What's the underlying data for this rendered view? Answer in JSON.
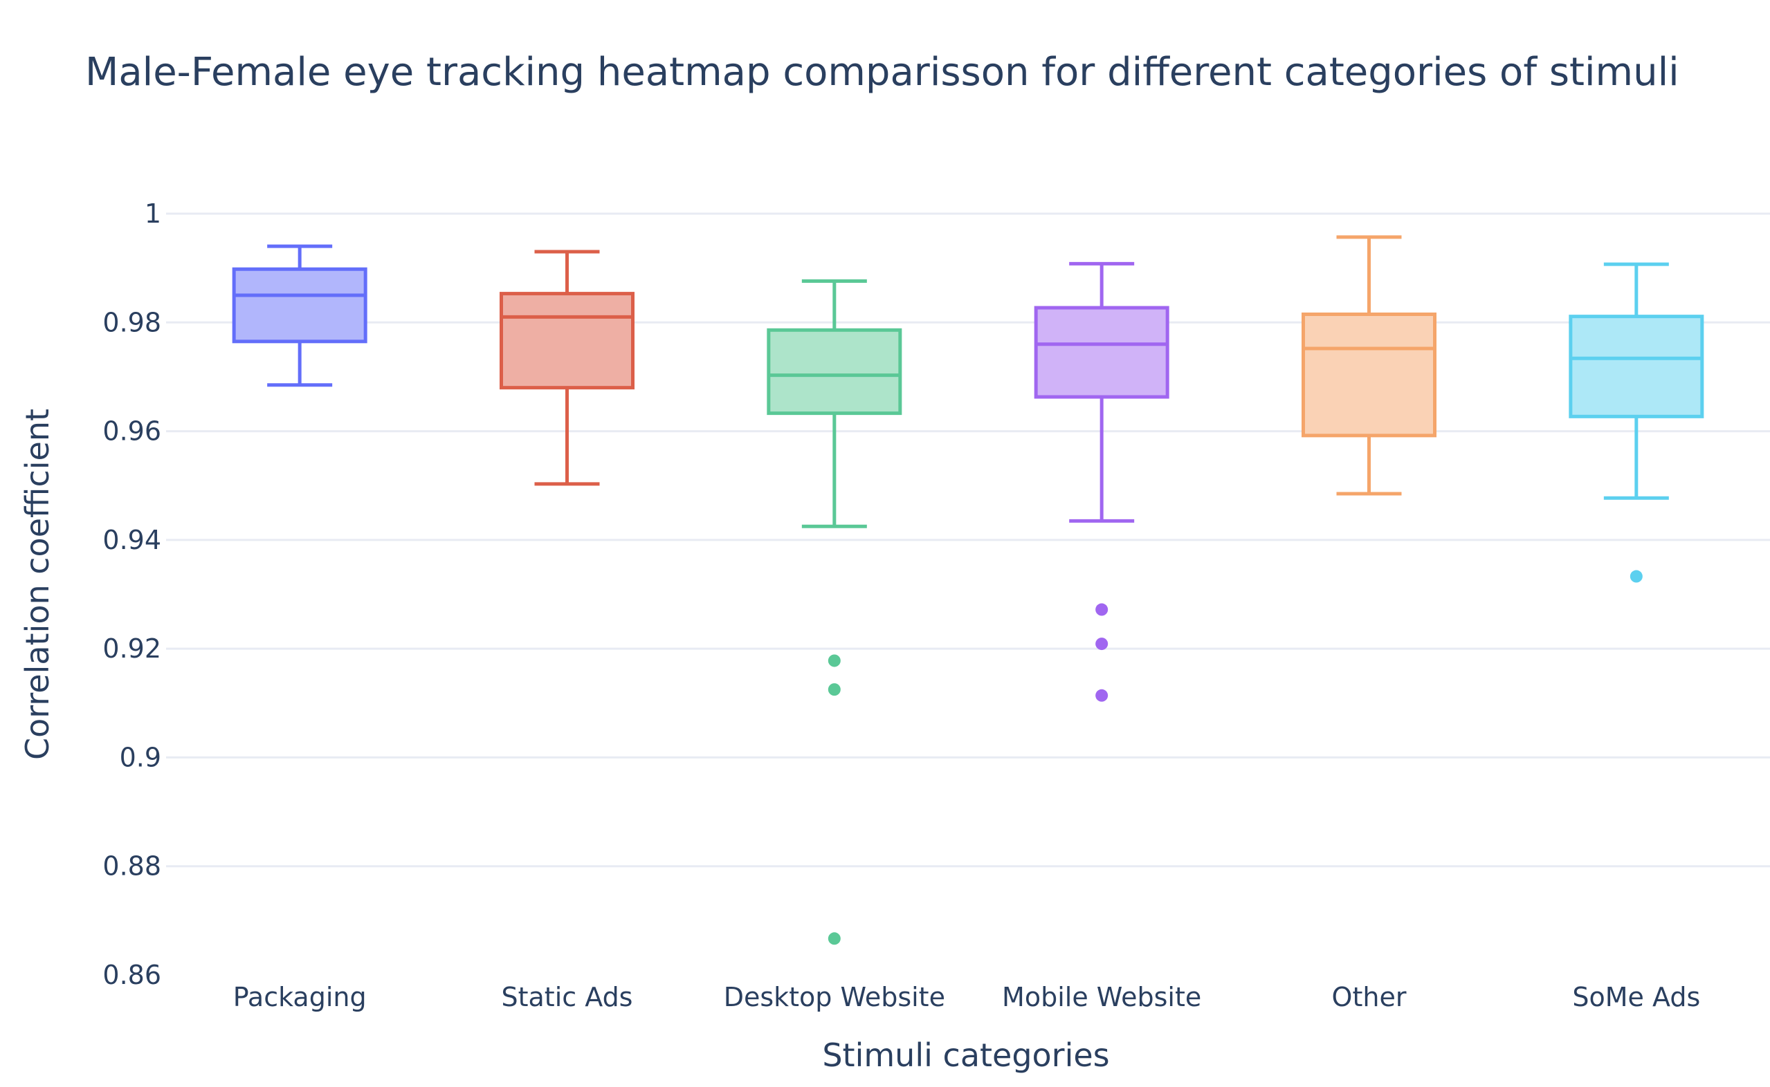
{
  "chart_data": {
    "type": "box",
    "title": "Male-Female eye tracking heatmap comparisson for different categories of stimuli",
    "xlabel": "Stimuli categories",
    "ylabel": "Correlation coefficient",
    "ylim": [
      0.86,
      1.0
    ],
    "yticks": [
      0.86,
      0.88,
      0.9,
      0.92,
      0.94,
      0.96,
      0.98,
      1.0
    ],
    "ytick_labels": [
      "0.86",
      "0.88",
      "0.9",
      "0.92",
      "0.94",
      "0.96",
      "0.98",
      "1"
    ],
    "grid": true,
    "categories": [
      "Packaging",
      "Static Ads",
      "Desktop Website",
      "Mobile Website",
      "Other",
      "SoMe Ads"
    ],
    "series": [
      {
        "color": "#636efa",
        "fill": "#b1b6fc",
        "lowerfence": 0.9685,
        "q1": 0.9765,
        "median": 0.985,
        "q3": 0.9898,
        "upperfence": 0.994,
        "outliers": []
      },
      {
        "color": "#dc5f49",
        "fill": "#eeafa4",
        "lowerfence": 0.9503,
        "q1": 0.968,
        "median": 0.981,
        "q3": 0.9853,
        "upperfence": 0.993,
        "outliers": []
      },
      {
        "color": "#5ac896",
        "fill": "#ade4ca",
        "lowerfence": 0.9425,
        "q1": 0.9633,
        "median": 0.9703,
        "q3": 0.9786,
        "upperfence": 0.9876,
        "outliers": [
          0.9178,
          0.9125,
          0.8667
        ]
      },
      {
        "color": "#a066f0",
        "fill": "#d0b3f8",
        "lowerfence": 0.9435,
        "q1": 0.9663,
        "median": 0.976,
        "q3": 0.9827,
        "upperfence": 0.9908,
        "outliers": [
          0.9272,
          0.9209,
          0.9114
        ]
      },
      {
        "color": "#f5a56a",
        "fill": "#fad2b5",
        "lowerfence": 0.9485,
        "q1": 0.9592,
        "median": 0.9752,
        "q3": 0.9815,
        "upperfence": 0.9957,
        "outliers": []
      },
      {
        "color": "#5cd0ef",
        "fill": "#ade8f7",
        "lowerfence": 0.9477,
        "q1": 0.9627,
        "median": 0.9734,
        "q3": 0.9811,
        "upperfence": 0.9907,
        "outliers": [
          0.9333
        ]
      }
    ]
  }
}
